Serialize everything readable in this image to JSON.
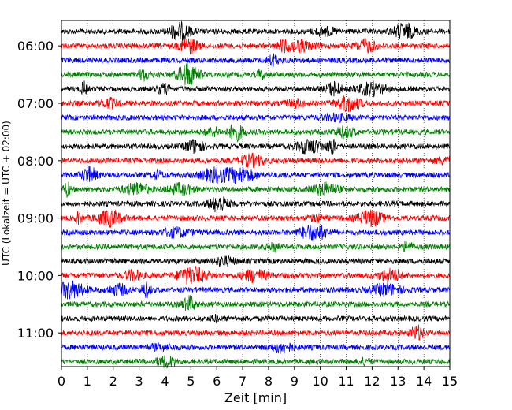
{
  "chart_data": {
    "type": "line",
    "title": "",
    "xlabel": "Zeit  [min]",
    "ylabel": "UTC (Lokalzeit = UTC + 02:00)",
    "xlim": [
      0,
      15
    ],
    "x_ticks": [
      "0",
      "1",
      "2",
      "3",
      "4",
      "5",
      "6",
      "7",
      "8",
      "9",
      "10",
      "11",
      "12",
      "13",
      "14",
      "15"
    ],
    "y_ticks": [
      "06:00",
      "07:00",
      "08:00",
      "09:00",
      "10:00",
      "11:00"
    ],
    "grid": true,
    "colors": [
      "#000000",
      "#ff0000",
      "#0000ff",
      "#008000"
    ],
    "start_time": "05:45",
    "traces_per_hour": 4,
    "trace_count": 24
  }
}
